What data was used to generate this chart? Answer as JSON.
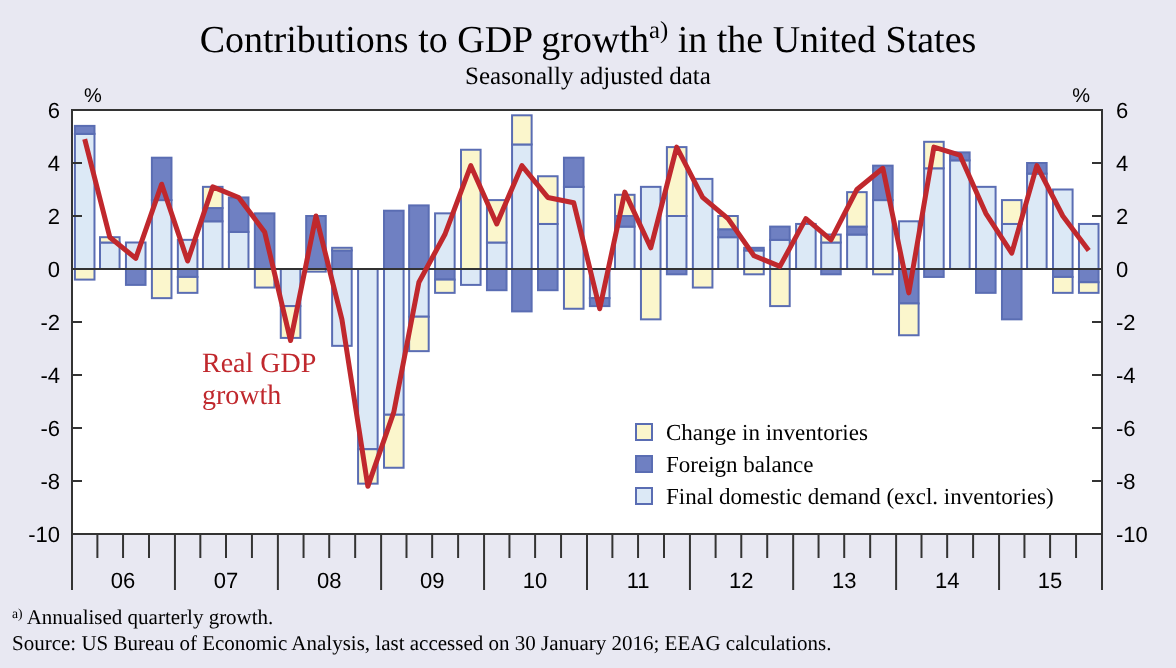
{
  "chart_data": {
    "type": "bar",
    "stacked": true,
    "title": "Contributions to GDP growth$^{a)}$ in the United States",
    "subtitle": "Seasonally adjusted data",
    "ylabel": "%",
    "y2label": "%",
    "x": [
      "2006-02-15",
      "2006-05-15",
      "2006-08-15",
      "2006-11-15",
      "2007-02-15",
      "2007-05-15",
      "2007-08-15",
      "2007-11-15",
      "2008-02-15",
      "2008-05-15",
      "2008-08-15",
      "2008-11-15",
      "2009-02-15",
      "2009-05-15",
      "2009-08-15",
      "2009-11-15",
      "2010-02-15",
      "2010-05-15",
      "2010-08-15",
      "2010-11-15",
      "2011-02-15",
      "2011-05-15",
      "2011-08-15",
      "2011-11-15",
      "2012-02-15",
      "2012-05-15",
      "2012-08-15",
      "2012-11-15",
      "2013-02-15",
      "2013-05-15",
      "2013-08-15",
      "2013-11-15",
      "2014-02-15",
      "2014-05-15",
      "2014-08-15",
      "2014-11-15",
      "2015-02-15",
      "2015-05-15",
      "2015-08-15",
      "2015-11-15"
    ],
    "xlim": [
      "2006-01-01",
      "2016-01-01"
    ],
    "xticks": [
      {
        "value": "2006-01-01",
        "label": null
      },
      {
        "value": "2006-04-01",
        "label": null
      },
      {
        "value": "2006-07-01",
        "label": "06"
      },
      {
        "value": "2006-10-01",
        "label": null
      },
      {
        "value": "2007-01-01",
        "label": null
      },
      {
        "value": "2007-04-01",
        "label": null
      },
      {
        "value": "2007-07-01",
        "label": "07"
      },
      {
        "value": "2007-10-01",
        "label": null
      },
      {
        "value": "2008-01-01",
        "label": null
      },
      {
        "value": "2008-04-01",
        "label": null
      },
      {
        "value": "2008-07-01",
        "label": "08"
      },
      {
        "value": "2008-10-01",
        "label": null
      },
      {
        "value": "2009-01-01",
        "label": null
      },
      {
        "value": "2009-04-01",
        "label": null
      },
      {
        "value": "2009-07-01",
        "label": "09"
      },
      {
        "value": "2009-10-01",
        "label": null
      },
      {
        "value": "2010-01-01",
        "label": null
      },
      {
        "value": "2010-04-01",
        "label": null
      },
      {
        "value": "2010-07-01",
        "label": "10"
      },
      {
        "value": "2010-10-01",
        "label": null
      },
      {
        "value": "2011-01-01",
        "label": null
      },
      {
        "value": "2011-04-01",
        "label": null
      },
      {
        "value": "2011-07-01",
        "label": "11"
      },
      {
        "value": "2011-10-01",
        "label": null
      },
      {
        "value": "2012-01-01",
        "label": null
      },
      {
        "value": "2012-04-01",
        "label": null
      },
      {
        "value": "2012-07-01",
        "label": "12"
      },
      {
        "value": "2012-10-01",
        "label": null
      },
      {
        "value": "2013-01-01",
        "label": null
      },
      {
        "value": "2013-04-01",
        "label": null
      },
      {
        "value": "2013-07-01",
        "label": "13"
      },
      {
        "value": "2013-10-01",
        "label": null
      },
      {
        "value": "2014-01-01",
        "label": null
      },
      {
        "value": "2014-04-01",
        "label": null
      },
      {
        "value": "2014-07-01",
        "label": "14"
      },
      {
        "value": "2014-10-01",
        "label": null
      },
      {
        "value": "2015-01-01",
        "label": null
      },
      {
        "value": "2015-04-01",
        "label": null
      },
      {
        "value": "2015-07-01",
        "label": "15"
      },
      {
        "value": "2015-10-01",
        "label": null
      },
      {
        "value": "2016-01-01",
        "label": null
      }
    ],
    "ylim": [
      -10,
      6
    ],
    "yticks": [
      -10,
      -8,
      -6,
      -4,
      -2,
      0,
      2,
      4,
      6
    ],
    "y2lim": [
      -10,
      6
    ],
    "y2ticks": [
      -10,
      -8,
      -6,
      -4,
      -2,
      0,
      2,
      4,
      6
    ],
    "series": [
      {
        "name": "Final domestic demand (excl. inventories)",
        "color": "#dce9f6",
        "values": [
          5.1,
          1.0,
          1.0,
          2.6,
          1.1,
          1.8,
          1.4,
          null,
          -1.4,
          null,
          -2.9,
          -6.8,
          -5.5,
          -1.8,
          2.1,
          -0.6,
          1.0,
          4.7,
          1.7,
          3.1,
          -1.1,
          1.6,
          3.1,
          2.0,
          3.4,
          1.2,
          0.7,
          1.1,
          1.7,
          1.0,
          1.3,
          2.6,
          1.8,
          3.8,
          4.1,
          3.1,
          1.7,
          3.6,
          3.0,
          1.7
        ]
      },
      {
        "name": "Foreign balance",
        "color": "#6f80c2",
        "values": [
          0.3,
          0,
          -0.6,
          1.6,
          -0.3,
          0.5,
          1.3,
          2.1,
          0,
          2.0,
          0.7,
          0,
          2.2,
          2.4,
          -0.4,
          0,
          -0.8,
          -1.6,
          -0.8,
          1.1,
          -0.3,
          0.4,
          0,
          -0.2,
          0,
          0.3,
          0.1,
          0.5,
          0,
          -0.2,
          0.3,
          1.3,
          -1.3,
          -0.3,
          0.3,
          -0.9,
          -1.9,
          0.4,
          -0.3,
          -0.5
        ]
      },
      {
        "name": "Change in inventories",
        "color": "#fbf6cc",
        "values": [
          -0.4,
          0.2,
          0,
          -1.1,
          -0.6,
          0.8,
          0,
          -0.7,
          -1.2,
          -0.1,
          0.1,
          -1.3,
          -2.0,
          -1.3,
          -0.5,
          4.5,
          1.6,
          1.1,
          1.8,
          -1.5,
          0,
          0.8,
          -1.9,
          2.6,
          -0.7,
          0.5,
          -0.2,
          -1.4,
          null,
          0.3,
          1.3,
          -0.2,
          -1.2,
          1.0,
          0,
          0,
          0.9,
          0,
          -0.6,
          -0.4
        ]
      },
      {
        "type": "line",
        "name": "Real GDP growth",
        "color": "#c0282d",
        "marker": "none",
        "values": [
          4.9,
          1.2,
          0.4,
          3.2,
          0.3,
          3.1,
          2.7,
          1.4,
          -2.7,
          2.0,
          -1.9,
          -8.2,
          -5.4,
          -0.5,
          1.3,
          3.9,
          1.7,
          3.9,
          2.7,
          2.5,
          -1.5,
          2.9,
          0.8,
          4.6,
          2.7,
          1.9,
          0.5,
          0.1,
          1.9,
          1.1,
          3.0,
          3.8,
          -0.9,
          4.6,
          4.3,
          2.1,
          0.6,
          3.9,
          2.0,
          0.7
        ]
      }
    ],
    "legend": "bottom right",
    "annotations": [
      "$^{a)}$ Annualised quarterly growth.",
      "Source: US Bureau of Economic Analysis, last accessed on 30 January 2016; EEAG calculations."
    ]
  }
}
